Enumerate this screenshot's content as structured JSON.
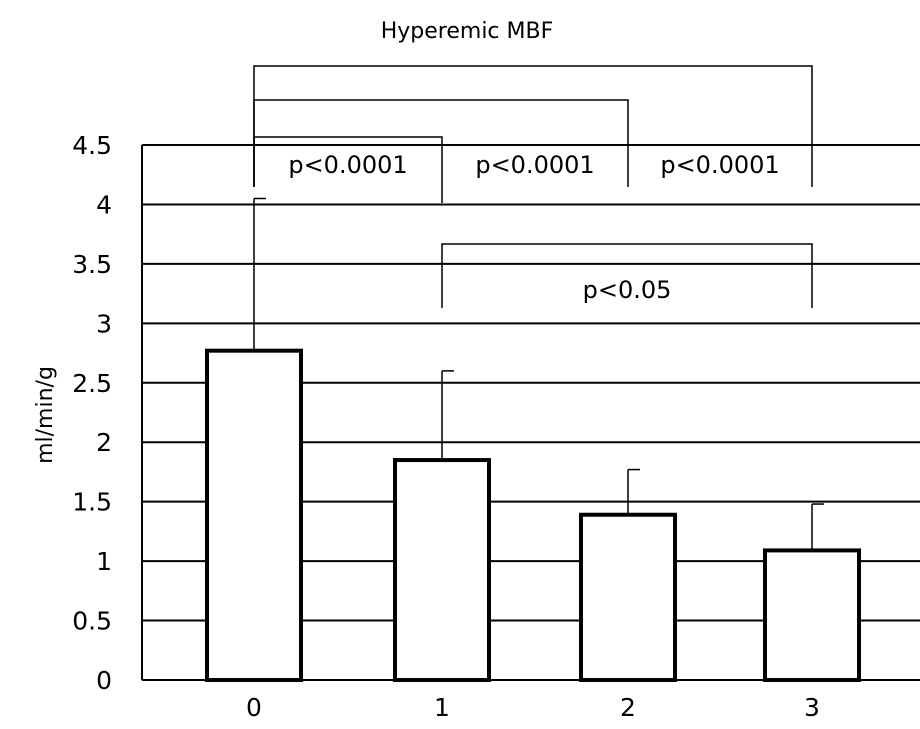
{
  "chart_data": {
    "type": "bar",
    "title": "Hyperemic MBF",
    "xlabel": "",
    "ylabel": "ml/min/g",
    "categories": [
      "0",
      "1",
      "2",
      "3"
    ],
    "values": [
      2.77,
      1.85,
      1.39,
      1.09
    ],
    "error_upper": [
      4.05,
      2.6,
      1.77,
      1.48
    ],
    "ylim": [
      0,
      4.5
    ],
    "yticks": [
      "0",
      "0.5",
      "1",
      "1.5",
      "2",
      "2.5",
      "3",
      "3.5",
      "4",
      "4.5"
    ],
    "grid": true,
    "bar_color": "#ffffff",
    "edge_color": "#000000",
    "annotations": [
      {
        "from": "0",
        "to": "1",
        "label": "p<0.0001"
      },
      {
        "from": "0",
        "to": "2",
        "label": "p<0.0001"
      },
      {
        "from": "0",
        "to": "3",
        "label": "p<0.0001"
      },
      {
        "from": "1",
        "to": "3",
        "label": "p<0.05"
      }
    ]
  }
}
